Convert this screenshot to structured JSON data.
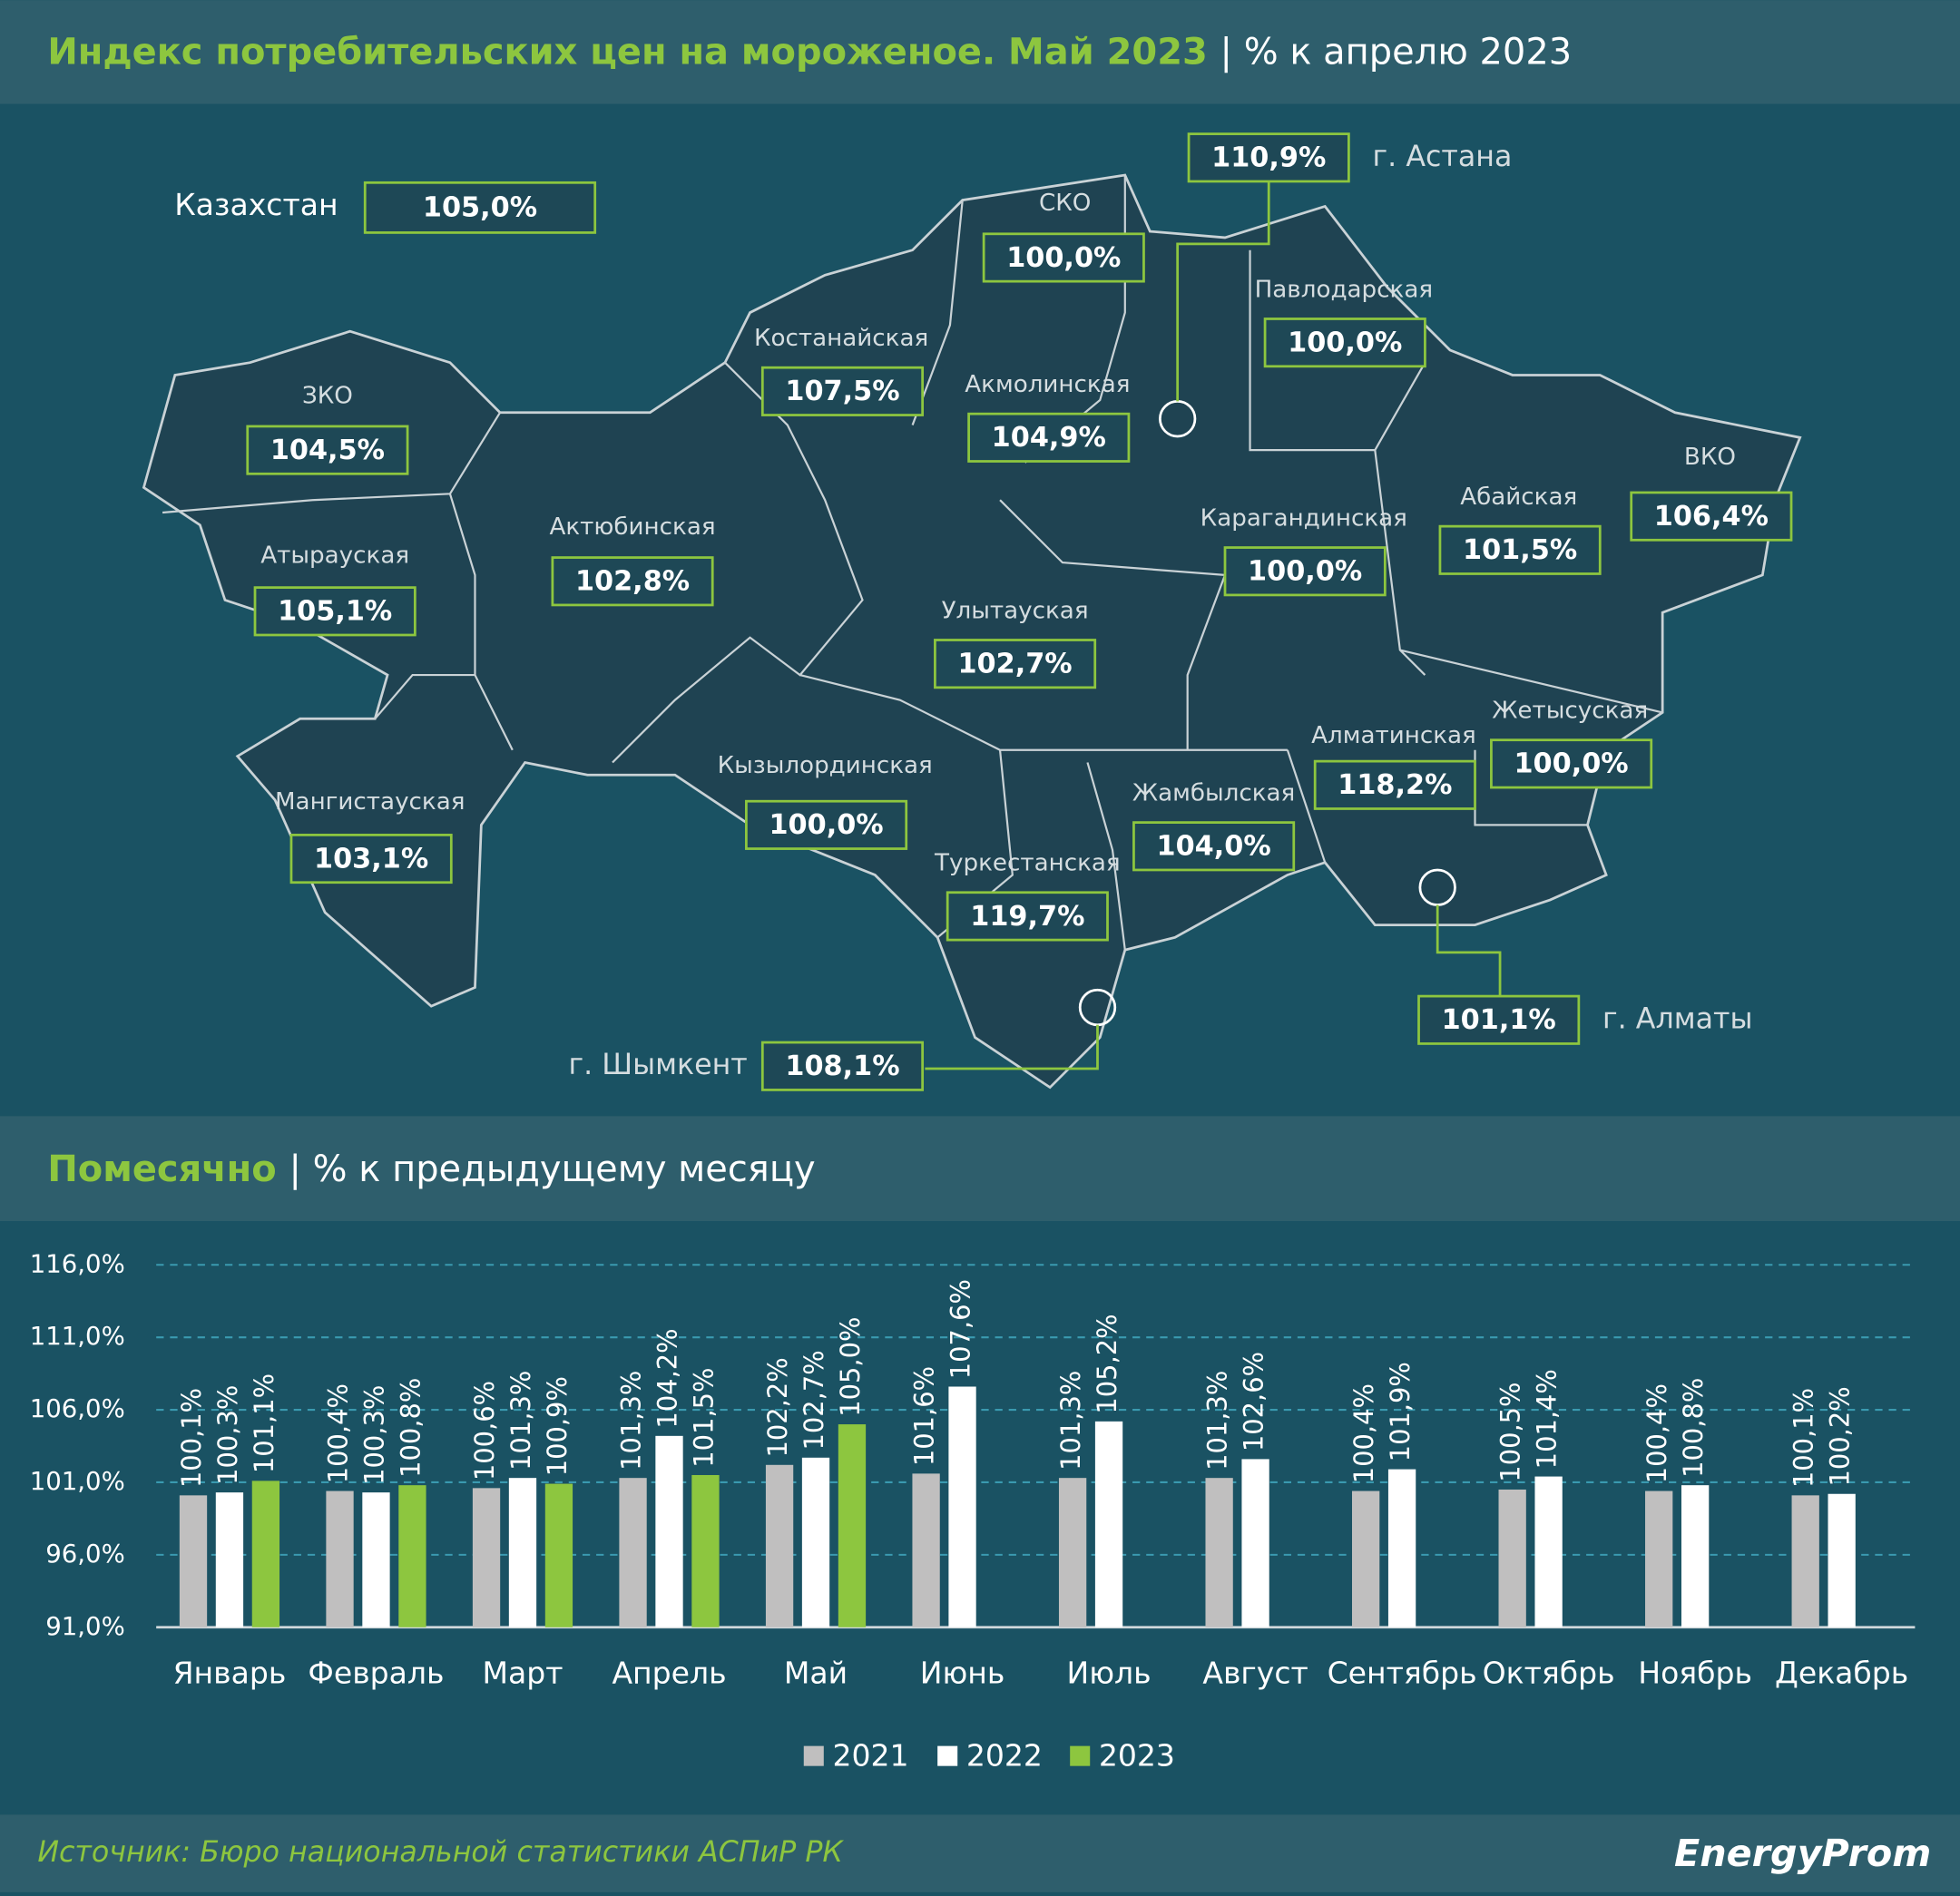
{
  "header": {
    "title": "Индекс потребительских цен на мороженое. Май 2023",
    "subtitle": "| % к апрелю 2023"
  },
  "map": {
    "country": {
      "name": "Казахстан",
      "value": "105,0%"
    },
    "regions": [
      {
        "name": "г. Астана",
        "value": "110,9%"
      },
      {
        "name": "СКО",
        "value": "100,0%"
      },
      {
        "name": "Павлодарская",
        "value": "100,0%"
      },
      {
        "name": "Костанайская",
        "value": "107,5%"
      },
      {
        "name": "Акмолинская",
        "value": "104,9%"
      },
      {
        "name": "ЗКО",
        "value": "104,5%"
      },
      {
        "name": "ВКО",
        "value": "106,4%"
      },
      {
        "name": "Абайская",
        "value": "101,5%"
      },
      {
        "name": "Карагандинская",
        "value": "100,0%"
      },
      {
        "name": "Актюбинская",
        "value": "102,8%"
      },
      {
        "name": "Атырауская",
        "value": "105,1%"
      },
      {
        "name": "Улытауская",
        "value": "102,7%"
      },
      {
        "name": "Жетысуская",
        "value": "100,0%"
      },
      {
        "name": "Алматинская",
        "value": "118,2%"
      },
      {
        "name": "Кызылординская",
        "value": "100,0%"
      },
      {
        "name": "Жамбылская",
        "value": "104,0%"
      },
      {
        "name": "Мангистауская",
        "value": "103,1%"
      },
      {
        "name": "Туркестанская",
        "value": "119,7%"
      },
      {
        "name": "г. Алматы",
        "value": "101,1%"
      },
      {
        "name": "г. Шымкент",
        "value": "108,1%"
      }
    ]
  },
  "section": {
    "title": "Помесячно",
    "subtitle": "| % к предыдущему месяцу"
  },
  "chart_data": {
    "type": "bar",
    "categories": [
      "Январь",
      "Февраль",
      "Март",
      "Апрель",
      "Май",
      "Июнь",
      "Июль",
      "Август",
      "Сентябрь",
      "Октябрь",
      "Ноябрь",
      "Декабрь"
    ],
    "series": [
      {
        "name": "2021",
        "color": "#c0bfbf",
        "values": [
          100.1,
          100.4,
          100.6,
          101.3,
          102.2,
          101.6,
          101.3,
          101.3,
          100.4,
          100.5,
          100.4,
          100.1
        ],
        "value_labels": [
          "100,1%",
          "100,4%",
          "100,6%",
          "101,3%",
          "102,2%",
          "101,6%",
          "101,3%",
          "101,3%",
          "100,4%",
          "100,5%",
          "100,4%",
          "100,1%"
        ]
      },
      {
        "name": "2022",
        "color": "#ffffff",
        "values": [
          100.3,
          100.3,
          101.3,
          104.2,
          102.7,
          107.6,
          105.2,
          102.6,
          101.9,
          101.4,
          100.8,
          100.2
        ],
        "value_labels": [
          "100,3%",
          "100,3%",
          "101,3%",
          "104,2%",
          "102,7%",
          "107,6%",
          "105,2%",
          "102,6%",
          "101,9%",
          "101,4%",
          "100,8%",
          "100,2%"
        ]
      },
      {
        "name": "2023",
        "color": "#8dc63f",
        "values": [
          101.1,
          100.8,
          100.9,
          101.5,
          105.0,
          null,
          null,
          null,
          null,
          null,
          null,
          null
        ],
        "value_labels": [
          "101,1%",
          "100,8%",
          "100,9%",
          "101,5%",
          "105,0%",
          null,
          null,
          null,
          null,
          null,
          null,
          null
        ]
      }
    ],
    "ylim": [
      91,
      116
    ],
    "yticks": [
      {
        "value": 91,
        "label": "91,0%"
      },
      {
        "value": 96,
        "label": "96,0%"
      },
      {
        "value": 101,
        "label": "101,0%"
      },
      {
        "value": 106,
        "label": "106,0%"
      },
      {
        "value": 111,
        "label": "111,0%"
      },
      {
        "value": 116,
        "label": "116,0%"
      }
    ],
    "grid": true,
    "legend": "bottom"
  },
  "footer": {
    "source": "Источник: Бюро национальной статистики АСПиР РК",
    "logo": "EnergyProm"
  }
}
